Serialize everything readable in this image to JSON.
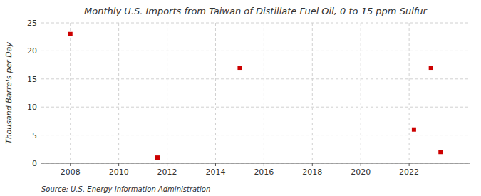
{
  "chart_data": {
    "type": "scatter",
    "title": "Monthly U.S. Imports from Taiwan of Distillate Fuel Oil, 0 to 15 ppm Sulfur",
    "ylabel": "Thousand Barrels per Day",
    "source": "Source: U.S. Energy Information Administration",
    "x": [
      2008.0,
      2011.6,
      2015.0,
      2022.2,
      2022.9,
      2023.3
    ],
    "values": [
      23,
      1,
      17,
      6,
      17,
      2
    ],
    "color": "#cc0000",
    "marker": "square",
    "xlim": [
      2006.8,
      2024.5
    ],
    "ylim": [
      0,
      25
    ],
    "xticks": [
      2008,
      2010,
      2012,
      2014,
      2016,
      2018,
      2020,
      2022
    ],
    "yticks": [
      0,
      5,
      10,
      15,
      20,
      25
    ],
    "grid": true
  }
}
